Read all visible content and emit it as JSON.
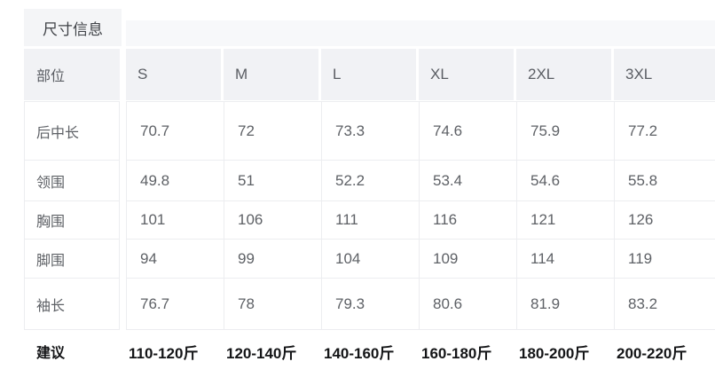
{
  "panel": {
    "title": "尺寸信息"
  },
  "table": {
    "corner_label": "部位",
    "size_headers": [
      "S",
      "M",
      "L",
      "XL",
      "2XL",
      "3XL"
    ],
    "rows": [
      {
        "label": "后中长",
        "values": [
          "70.7",
          "72",
          "73.3",
          "74.6",
          "75.9",
          "77.2"
        ]
      },
      {
        "label": "领围",
        "values": [
          "49.8",
          "51",
          "52.2",
          "53.4",
          "54.6",
          "55.8"
        ]
      },
      {
        "label": "胸围",
        "values": [
          "101",
          "106",
          "111",
          "116",
          "121",
          "126"
        ]
      },
      {
        "label": "脚围",
        "values": [
          "94",
          "99",
          "104",
          "109",
          "114",
          "119"
        ]
      },
      {
        "label": "袖长",
        "values": [
          "76.7",
          "78",
          "79.3",
          "80.6",
          "81.9",
          "83.2"
        ]
      }
    ],
    "suggestion": {
      "label": "建议",
      "values": [
        "110-120斤",
        "120-140斤",
        "140-160斤",
        "160-180斤",
        "180-200斤",
        "200-220斤"
      ]
    }
  },
  "colors": {
    "header_bg": "#f1f2f5",
    "title_bg": "#f4f5f7",
    "top_strip_bg": "#f7f8fa",
    "border": "#ecedf0",
    "value_text": "#5e6166",
    "header_text": "#5a5d63",
    "suggestion_text": "#141517",
    "background": "#ffffff"
  }
}
